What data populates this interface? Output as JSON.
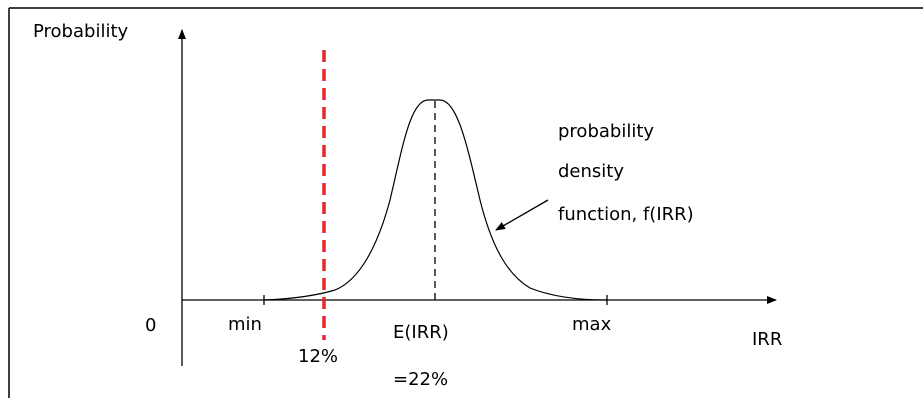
{
  "labels": {
    "y_axis": "Probability",
    "x_axis": "IRR",
    "origin": "0",
    "min": "min",
    "max": "max",
    "threshold": "12%",
    "expected_line1": "E(IRR)",
    "expected_line2": "=22%",
    "curve_line1": "probability",
    "curve_line2": "density",
    "curve_line3": "function, f(IRR)"
  },
  "colors": {
    "threshold_line": "#e8262b",
    "ink": "#000000",
    "frame": "#000000"
  }
}
